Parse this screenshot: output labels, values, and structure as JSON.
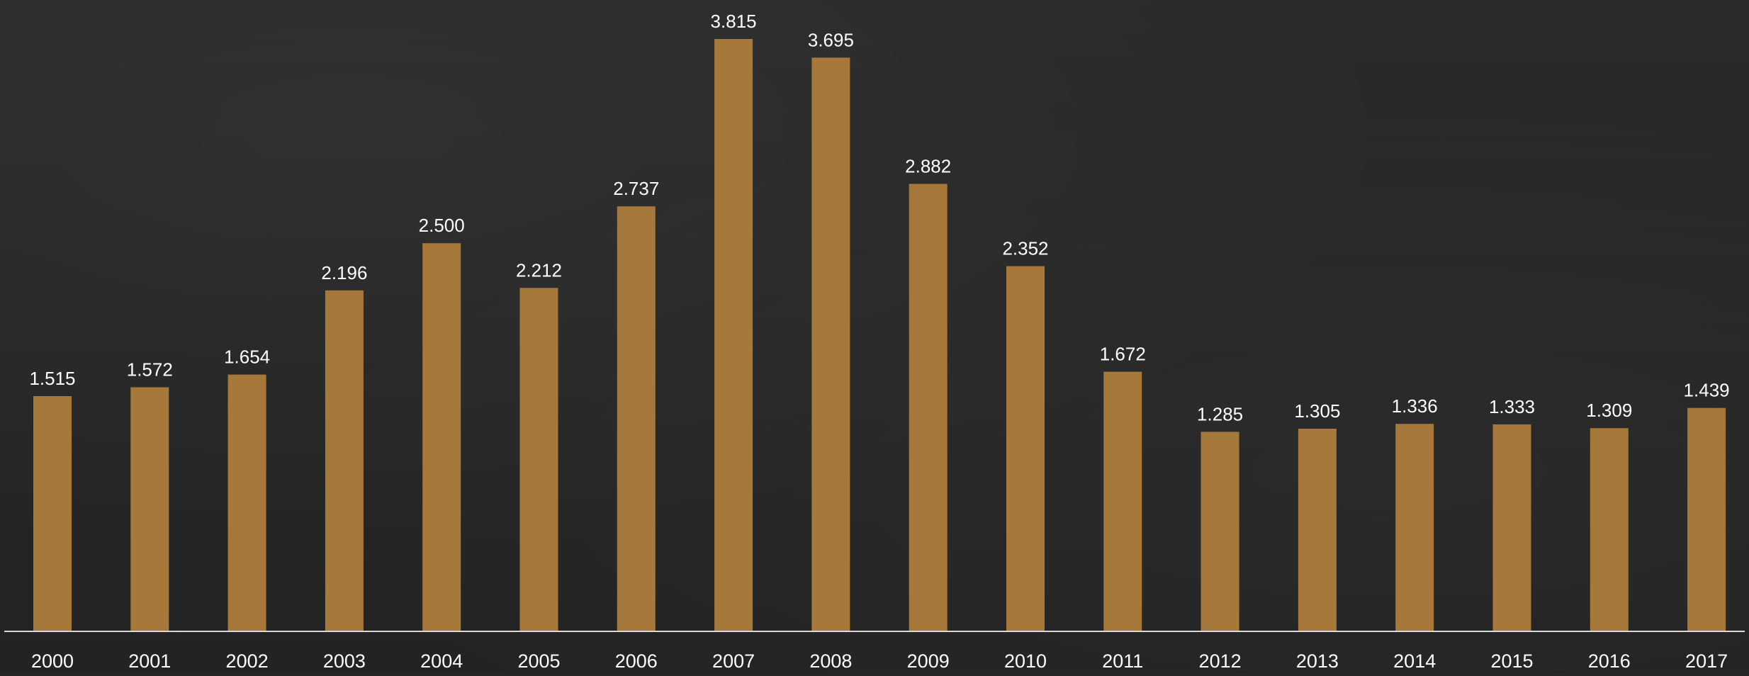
{
  "colors": {
    "bar": "#A6783A",
    "text": "#FFFFFF",
    "axis": "#D9D9D9",
    "background": "#262626"
  },
  "chart_data": {
    "type": "bar",
    "title": "",
    "xlabel": "",
    "ylabel": "",
    "ylim": [
      0,
      3.815
    ],
    "grid": false,
    "categories": [
      "2000",
      "2001",
      "2002",
      "2003",
      "2004",
      "2005",
      "2006",
      "2007",
      "2008",
      "2009",
      "2010",
      "2011",
      "2012",
      "2013",
      "2014",
      "2015",
      "2016",
      "2017"
    ],
    "values": [
      1.515,
      1.572,
      1.654,
      2.196,
      2.5,
      2.212,
      2.737,
      3.815,
      3.695,
      2.882,
      2.352,
      1.672,
      1.285,
      1.305,
      1.336,
      1.333,
      1.309,
      1.439
    ],
    "data_labels": [
      "1.515",
      "1.572",
      "1.654",
      "2.196",
      "2.500",
      "2.212",
      "2.737",
      "3.815",
      "3.695",
      "2.882",
      "2.352",
      "1.672",
      "1.285",
      "1.305",
      "1.336",
      "1.333",
      "1.309",
      "1.439"
    ]
  }
}
